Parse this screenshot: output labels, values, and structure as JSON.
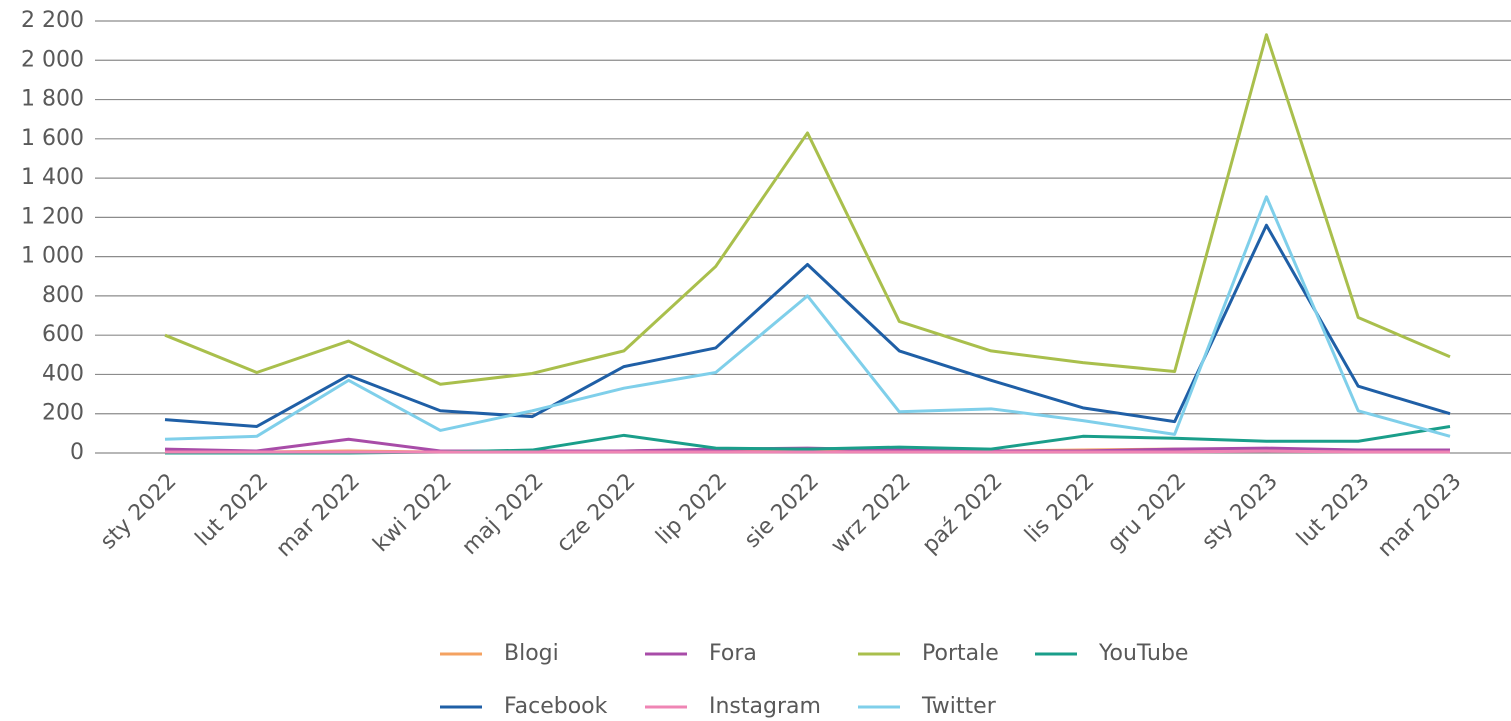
{
  "chart_data": {
    "type": "line",
    "categories": [
      "sty 2022",
      "lut 2022",
      "mar 2022",
      "kwi 2022",
      "maj 2022",
      "cze 2022",
      "lip 2022",
      "sie 2022",
      "wrz 2022",
      "paź 2022",
      "lis 2022",
      "gru 2022",
      "sty 2023",
      "lut 2023",
      "mar 2023"
    ],
    "series": [
      {
        "name": "Blogi",
        "color": "#f4a261",
        "values": [
          10,
          5,
          10,
          5,
          10,
          10,
          15,
          15,
          10,
          10,
          15,
          20,
          20,
          10,
          10
        ]
      },
      {
        "name": "Fora",
        "color": "#a84ca8",
        "values": [
          20,
          10,
          70,
          10,
          10,
          10,
          20,
          25,
          15,
          10,
          10,
          20,
          25,
          15,
          15
        ]
      },
      {
        "name": "Portale",
        "color": "#a9bf4c",
        "values": [
          600,
          410,
          570,
          350,
          405,
          520,
          950,
          1630,
          670,
          520,
          460,
          415,
          2130,
          690,
          490
        ]
      },
      {
        "name": "YouTube",
        "color": "#1a9e8a",
        "values": [
          0,
          0,
          0,
          5,
          15,
          90,
          25,
          20,
          30,
          20,
          85,
          75,
          60,
          60,
          135
        ]
      },
      {
        "name": "Facebook",
        "color": "#1f5fa6",
        "values": [
          170,
          135,
          395,
          215,
          185,
          440,
          535,
          960,
          520,
          370,
          230,
          160,
          1160,
          340,
          200
        ]
      },
      {
        "name": "Instagram",
        "color": "#ef85b4",
        "values": [
          5,
          5,
          5,
          5,
          5,
          5,
          5,
          5,
          5,
          5,
          5,
          5,
          10,
          5,
          5
        ]
      },
      {
        "name": "Twitter",
        "color": "#7fcfea",
        "values": [
          70,
          85,
          370,
          115,
          215,
          330,
          410,
          800,
          210,
          225,
          165,
          95,
          1305,
          215,
          85
        ]
      }
    ],
    "ylim": [
      0,
      2200
    ],
    "yticks": [
      0,
      200,
      400,
      600,
      800,
      {
        "value": 1000,
        "label": "1 000"
      },
      {
        "value": 1200,
        "label": "1 200"
      },
      {
        "value": 1400,
        "label": "1 400"
      },
      {
        "value": 1600,
        "label": "1 600"
      },
      {
        "value": 1800,
        "label": "1 800"
      },
      {
        "value": 2000,
        "label": "2 000"
      },
      {
        "value": 2200,
        "label": "2 200"
      }
    ],
    "grid": true,
    "legend": "bottom"
  }
}
